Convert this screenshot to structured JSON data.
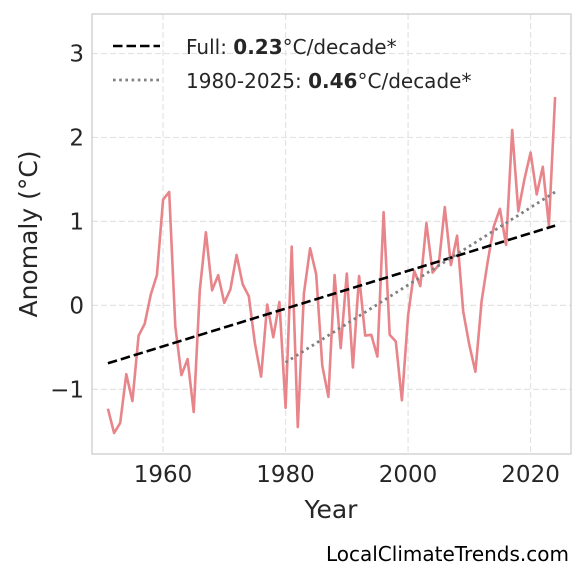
{
  "chart_data": {
    "type": "line",
    "title": "",
    "xlabel": "Year",
    "ylabel": "Anomaly (°C)",
    "xlim": [
      1948.4,
      2026.6
    ],
    "ylim": [
      -1.77,
      3.47
    ],
    "x_ticks": [
      1960,
      1980,
      2000,
      2020
    ],
    "y_ticks": [
      -1,
      0,
      1,
      2,
      3
    ],
    "y_tick_labels": [
      "−1",
      "0",
      "1",
      "2",
      "3"
    ],
    "grid": true,
    "legend_position": "top-left",
    "series": [
      {
        "color": "#e8858a",
        "x": [
          1951,
          1952,
          1953,
          1954,
          1955,
          1956,
          1957,
          1958,
          1959,
          1960,
          1961,
          1962,
          1963,
          1964,
          1965,
          1966,
          1967,
          1968,
          1969,
          1970,
          1971,
          1972,
          1973,
          1974,
          1975,
          1976,
          1977,
          1978,
          1979,
          1980,
          1981,
          1982,
          1983,
          1984,
          1985,
          1986,
          1987,
          1988,
          1989,
          1990,
          1991,
          1992,
          1993,
          1994,
          1995,
          1996,
          1997,
          1998,
          1999,
          2000,
          2001,
          2002,
          2003,
          2004,
          2005,
          2006,
          2007,
          2008,
          2009,
          2010,
          2011,
          2012,
          2013,
          2014,
          2015,
          2016,
          2017,
          2018,
          2019,
          2020,
          2021,
          2022,
          2023,
          2024
        ],
        "y": [
          -1.23,
          -1.52,
          -1.4,
          -0.82,
          -1.14,
          -0.36,
          -0.22,
          0.13,
          0.36,
          1.26,
          1.35,
          -0.25,
          -0.83,
          -0.64,
          -1.27,
          0.18,
          0.87,
          0.18,
          0.36,
          0.03,
          0.19,
          0.6,
          0.25,
          0.11,
          -0.45,
          -0.85,
          0.01,
          -0.38,
          0.04,
          -1.22,
          0.7,
          -1.45,
          0.14,
          0.68,
          0.37,
          -0.72,
          -1.09,
          0.36,
          -0.51,
          0.38,
          -0.74,
          0.35,
          -0.36,
          -0.35,
          -0.61,
          1.11,
          -0.35,
          -0.43,
          -1.13,
          -0.12,
          0.41,
          0.23,
          0.98,
          0.39,
          0.48,
          1.17,
          0.48,
          0.83,
          -0.07,
          -0.47,
          -0.79,
          0.05,
          0.52,
          0.94,
          1.15,
          0.72,
          2.09,
          1.12,
          1.5,
          1.82,
          1.32,
          1.65,
          0.95,
          2.48
        ]
      },
      {
        "name": "Full:",
        "rate": "0.23",
        "unit": "°C/decade*",
        "color": "#000000",
        "style": "dashed",
        "x": [
          1951,
          2024
        ],
        "y": [
          -0.69,
          0.95
        ]
      },
      {
        "name": "1980-2025:",
        "rate": "0.46",
        "unit": "°C/decade*",
        "color": "#808080",
        "style": "dotted",
        "x": [
          1980,
          2024
        ],
        "y": [
          -0.68,
          1.35
        ]
      }
    ]
  },
  "source": "LocalClimateTrends.com"
}
